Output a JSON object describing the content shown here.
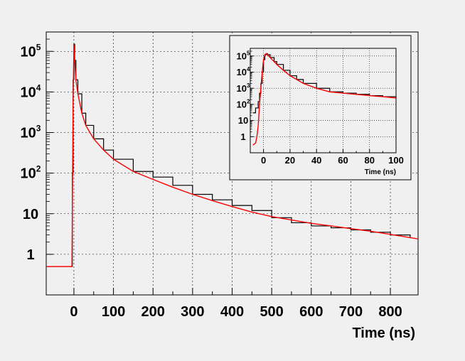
{
  "chart_data": [
    {
      "id": "main",
      "type": "line",
      "title": "",
      "xlabel": "Time (ns)",
      "ylabel": "",
      "xlim": [
        -70,
        870
      ],
      "ylim": [
        0.1,
        300000
      ],
      "yscale": "log",
      "grid": true,
      "x_ticks": [
        0,
        100,
        200,
        300,
        400,
        500,
        600,
        700,
        800
      ],
      "x_tick_labels": [
        "0",
        "100",
        "200",
        "300",
        "400",
        "500",
        "600",
        "700",
        "800"
      ],
      "y_ticks": [
        1,
        10,
        100,
        1000,
        10000,
        100000
      ],
      "y_tick_labels": [
        {
          "base": "1",
          "exp": ""
        },
        {
          "base": "10",
          "exp": ""
        },
        {
          "base": "10",
          "exp": "2"
        },
        {
          "base": "10",
          "exp": "3"
        },
        {
          "base": "10",
          "exp": "4"
        },
        {
          "base": "10",
          "exp": "5"
        }
      ],
      "series": [
        {
          "color": "#000000",
          "style": "histogram",
          "x": [
            -70,
            -50,
            -30,
            -10,
            -4,
            -2,
            0,
            2,
            5,
            10,
            20,
            30,
            50,
            75,
            100,
            150,
            200,
            250,
            300,
            350,
            400,
            450,
            500,
            550,
            600,
            650,
            700,
            750,
            800,
            850
          ],
          "y": [
            0.5,
            0.5,
            0.5,
            0.5,
            100,
            20000,
            150000,
            60000,
            20000,
            9000,
            3000,
            1500,
            700,
            370,
            220,
            110,
            80,
            50,
            30,
            22,
            16,
            12,
            8,
            6,
            5,
            4.5,
            4,
            3.5,
            3,
            2.5
          ]
        },
        {
          "color": "#ff0000",
          "style": "line",
          "x": [
            -70,
            -10,
            -5,
            -2,
            0,
            2,
            5,
            10,
            20,
            30,
            50,
            75,
            100,
            150,
            200,
            250,
            300,
            350,
            400,
            450,
            500,
            550,
            600,
            650,
            700,
            750,
            800,
            870
          ],
          "y": [
            0.5,
            0.5,
            0.5,
            5000,
            150000,
            60000,
            20000,
            9000,
            3000,
            1500,
            700,
            370,
            220,
            110,
            70,
            45,
            30,
            21,
            15,
            11,
            8.5,
            7,
            5.8,
            5,
            4.3,
            3.7,
            3.1,
            2.4
          ]
        }
      ]
    },
    {
      "id": "inset",
      "type": "line",
      "title": "",
      "xlabel": "Time (ns)",
      "ylabel": "",
      "xlim": [
        -10,
        100
      ],
      "ylim": [
        0.1,
        300000
      ],
      "yscale": "log",
      "grid": true,
      "x_ticks": [
        0,
        20,
        40,
        60,
        80,
        100
      ],
      "x_tick_labels": [
        "0",
        "20",
        "40",
        "60",
        "80",
        "100"
      ],
      "y_ticks": [
        1,
        10,
        100,
        1000,
        10000,
        100000
      ],
      "y_tick_labels": [
        {
          "base": "1",
          "exp": ""
        },
        {
          "base": "10",
          "exp": ""
        },
        {
          "base": "10",
          "exp": "2"
        },
        {
          "base": "10",
          "exp": "3"
        },
        {
          "base": "10",
          "exp": "4"
        },
        {
          "base": "10",
          "exp": "5"
        }
      ],
      "series": [
        {
          "color": "#000000",
          "style": "histogram",
          "x": [
            -8,
            -6,
            -4,
            -3,
            -2,
            -1,
            0,
            1,
            2,
            3,
            5,
            8,
            10,
            15,
            20,
            25,
            30,
            40,
            50,
            60,
            70,
            80,
            90,
            100
          ],
          "y": [
            30,
            60,
            150,
            500,
            2000,
            10000,
            60000,
            120000,
            140000,
            120000,
            80000,
            45000,
            30000,
            13000,
            6000,
            3500,
            2000,
            1000,
            600,
            500,
            420,
            350,
            300,
            250
          ]
        },
        {
          "color": "#ff0000",
          "style": "line",
          "x": [
            -8,
            -6,
            -5,
            -4,
            -3,
            -2,
            -1,
            0,
            1,
            2,
            3,
            5,
            8,
            10,
            15,
            20,
            25,
            30,
            40,
            50,
            60,
            70,
            80,
            90,
            100
          ],
          "y": [
            0.3,
            0.4,
            1,
            5,
            100,
            1000,
            10000,
            60000,
            120000,
            140000,
            120000,
            80000,
            45000,
            30000,
            13000,
            6000,
            3500,
            2000,
            1000,
            600,
            500,
            420,
            350,
            300,
            250
          ]
        }
      ]
    }
  ]
}
